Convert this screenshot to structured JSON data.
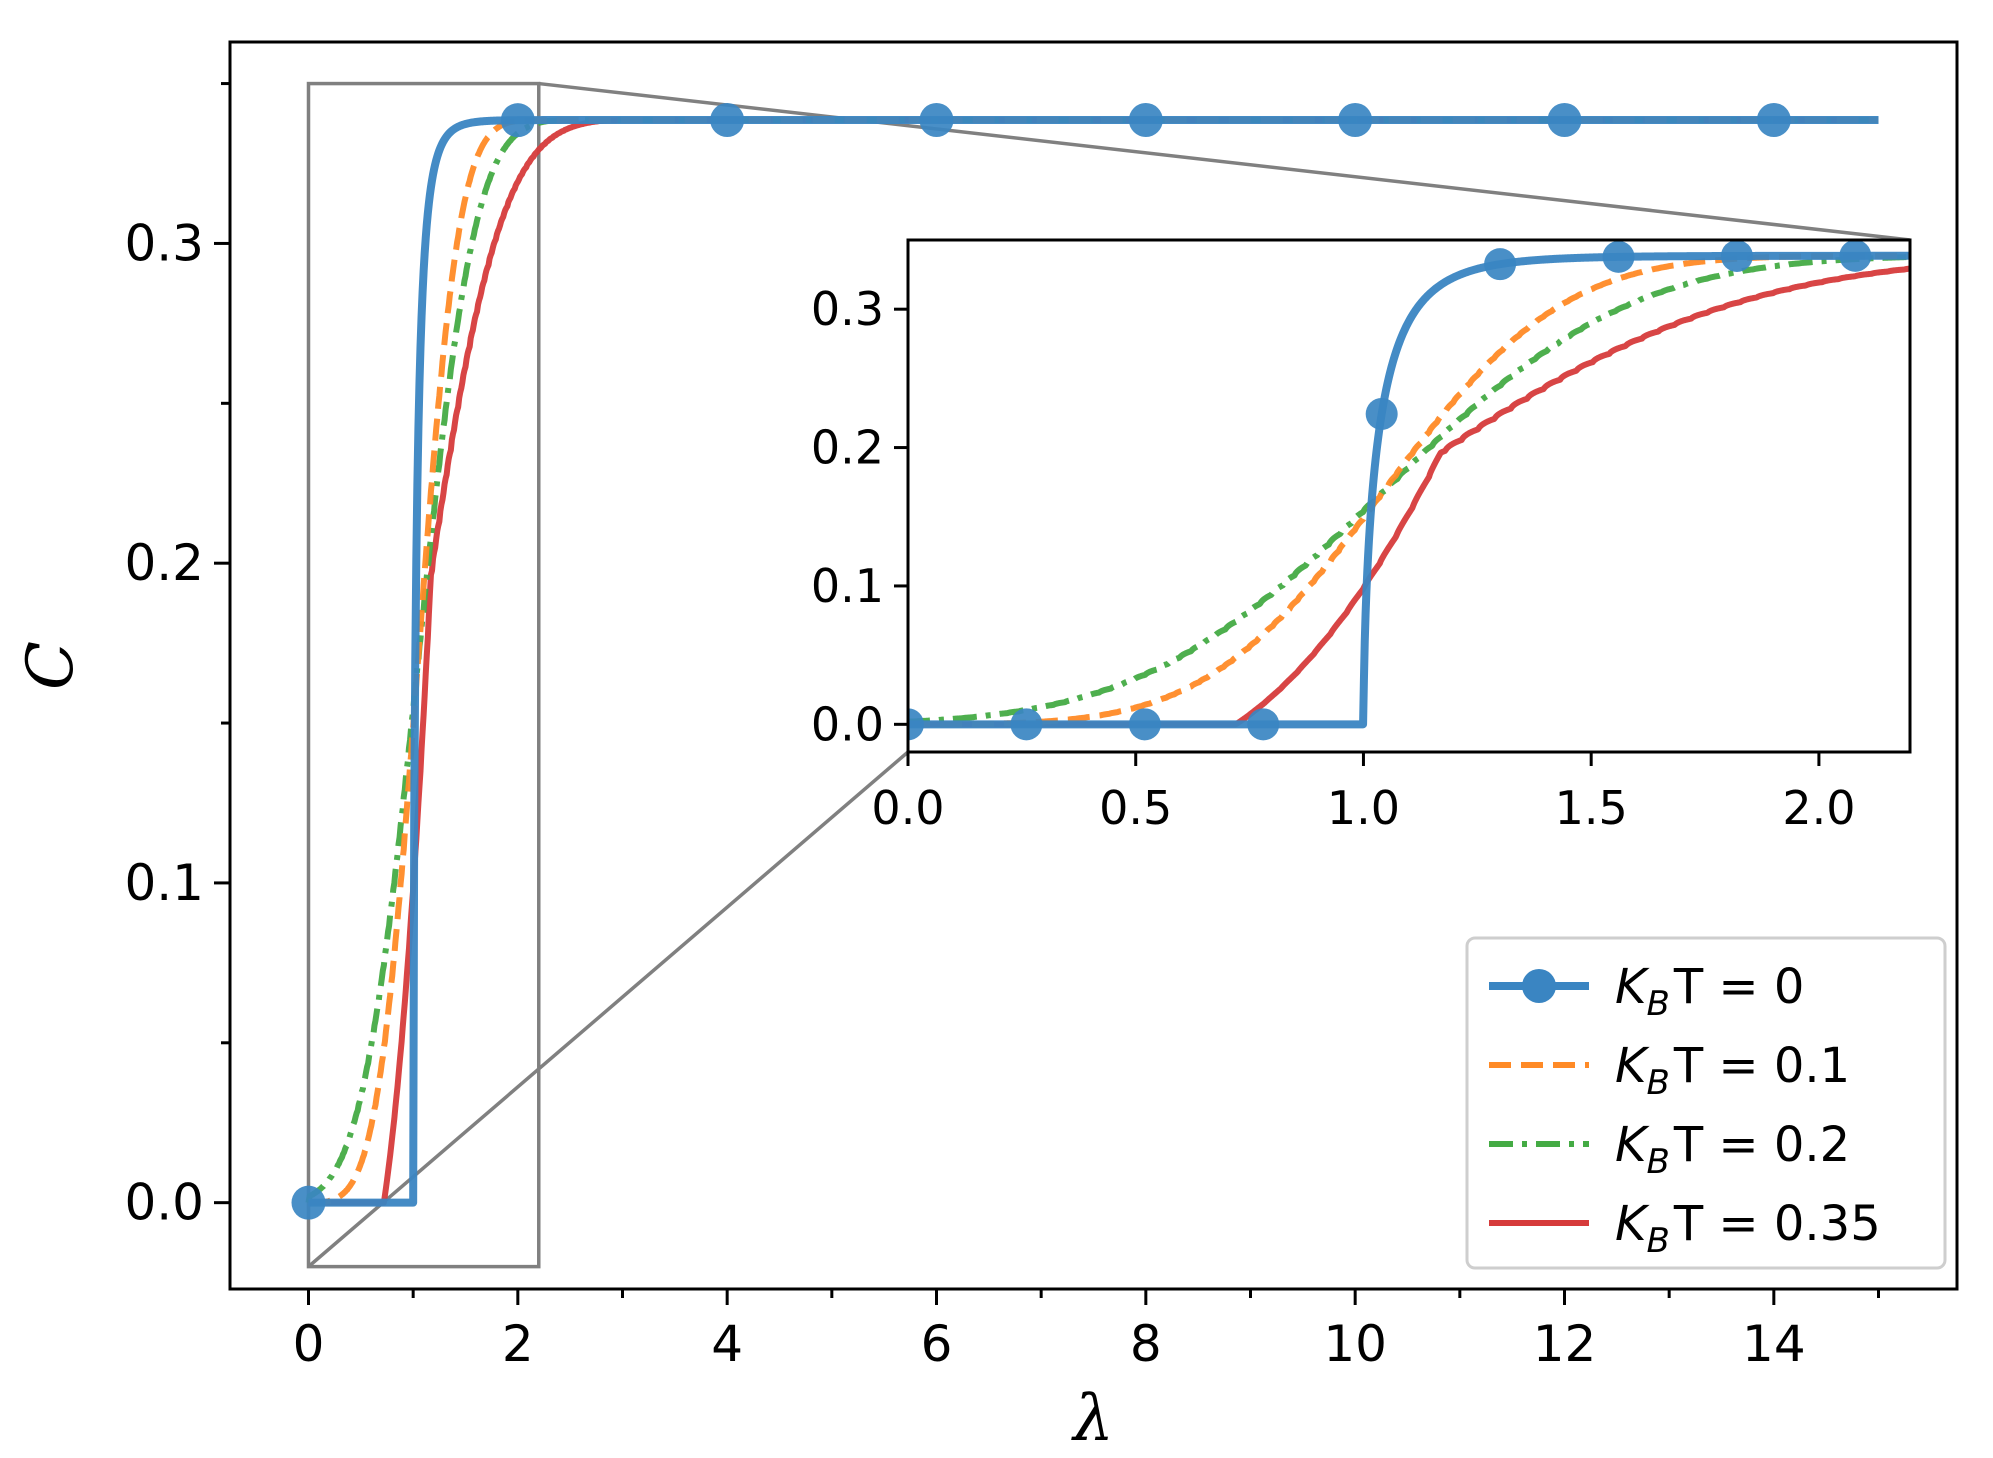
{
  "chart_data": {
    "type": "line",
    "xlabel": "λ",
    "ylabel": "C",
    "xlim": [
      -0.75,
      15.75
    ],
    "ylim": [
      -0.027,
      0.363
    ],
    "x_ticks": [
      0,
      2,
      4,
      6,
      8,
      10,
      12,
      14
    ],
    "y_ticks": [
      0.0,
      0.1,
      0.2,
      0.3
    ],
    "x_tick_labels": [
      "0",
      "2",
      "4",
      "6",
      "8",
      "10",
      "12",
      "14"
    ],
    "y_tick_labels": [
      "0.0",
      "0.1",
      "0.2",
      "0.3"
    ],
    "legend_position": "lower-right",
    "series": [
      {
        "name": "K_B T = 0",
        "label_main": "K",
        "label_sub": "B",
        "label_rest": "T = 0",
        "color": "#3a85c2",
        "style": "solid-marker",
        "temperature": 0
      },
      {
        "name": "K_B T = 0.1",
        "label_main": "K",
        "label_sub": "B",
        "label_rest": "T = 0.1",
        "color": "#ff8a26",
        "style": "dashed",
        "temperature": 0.1
      },
      {
        "name": "K_B T = 0.2",
        "label_main": "K",
        "label_sub": "B",
        "label_rest": "T = 0.2",
        "color": "#44ab44",
        "style": "dashdot",
        "temperature": 0.2
      },
      {
        "name": "K_B T = 0.35",
        "label_main": "K",
        "label_sub": "B",
        "label_rest": "T = 0.35",
        "color": "#d63b3b",
        "style": "solid",
        "temperature": 0.35
      }
    ],
    "zoom_box": {
      "x": [
        0,
        2.2
      ],
      "y": [
        -0.02,
        0.35
      ]
    },
    "inset": {
      "xlim": [
        0,
        2.2
      ],
      "ylim": [
        -0.02,
        0.35
      ],
      "x_ticks": [
        0.0,
        0.5,
        1.0,
        1.5,
        2.0
      ],
      "y_ticks": [
        0.0,
        0.1,
        0.2,
        0.3
      ],
      "x_tick_labels": [
        "0.0",
        "0.5",
        "1.0",
        "1.5",
        "2.0"
      ],
      "y_tick_labels": [
        "0.0",
        "0.1",
        "0.2",
        "0.3"
      ]
    },
    "main_markers_x": [
      0,
      2,
      4,
      6,
      8,
      10,
      12,
      14
    ],
    "inset_markers_x": [
      0,
      0.26,
      0.52,
      0.78,
      1.04,
      1.3,
      1.56,
      1.82,
      2.08
    ],
    "saturation_value": 0.3386,
    "critical_lambda": 1.0
  }
}
